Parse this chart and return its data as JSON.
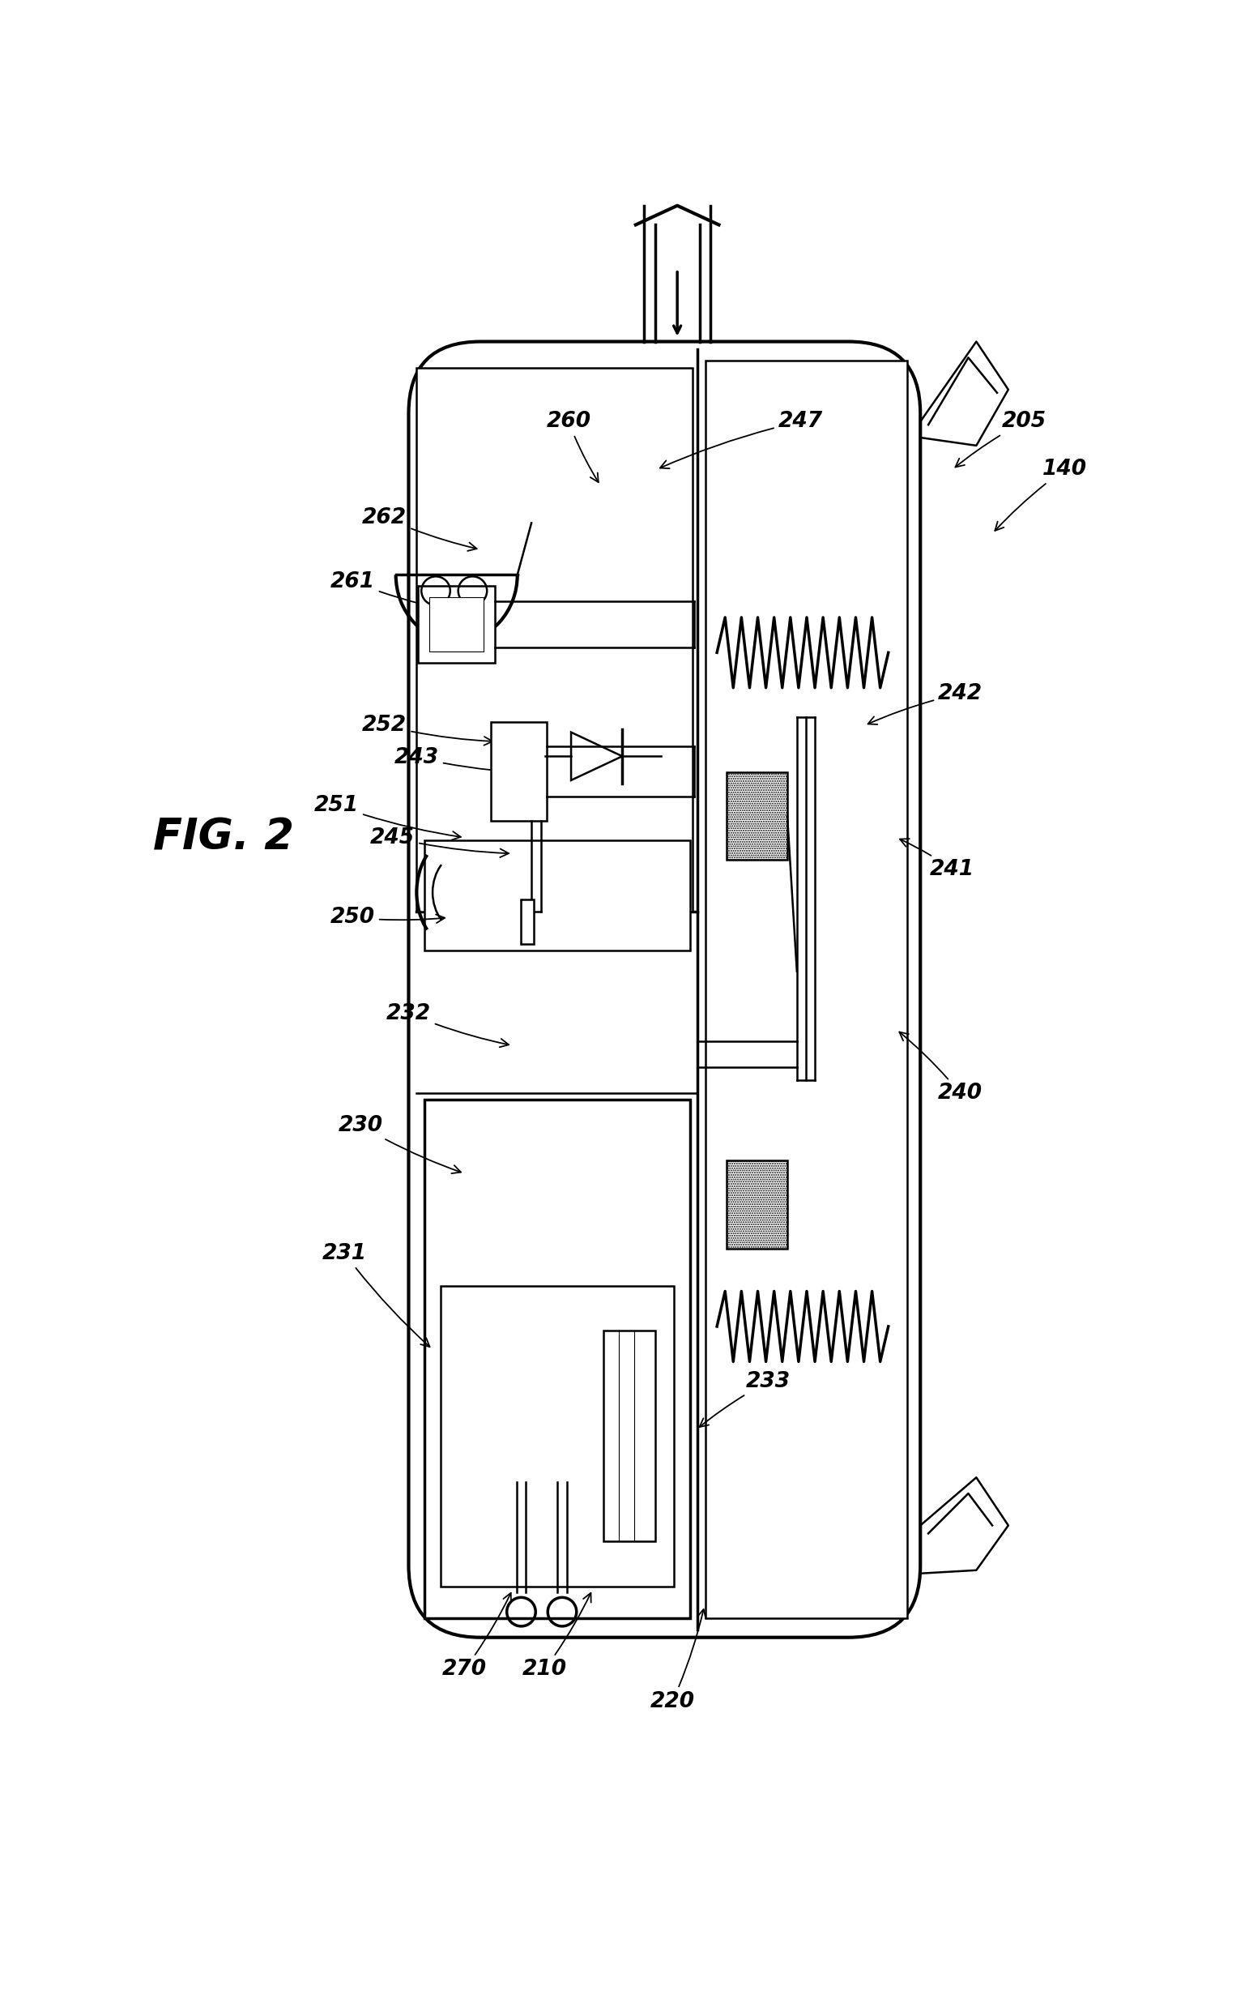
{
  "background_color": "#ffffff",
  "line_color": "#000000",
  "fig_width": 15.42,
  "fig_height": 24.62,
  "fig_label": "FIG. 2",
  "annotations": [
    [
      "140",
      5.85,
      9.5,
      5.4,
      9.1
    ],
    [
      "205",
      5.6,
      9.8,
      5.15,
      9.5
    ],
    [
      "210",
      2.6,
      2.0,
      2.9,
      2.5
    ],
    [
      "220",
      3.4,
      1.8,
      3.6,
      2.4
    ],
    [
      "230",
      1.45,
      5.4,
      2.1,
      5.1
    ],
    [
      "231",
      1.35,
      4.6,
      1.9,
      4.0
    ],
    [
      "232",
      1.75,
      6.1,
      2.4,
      5.9
    ],
    [
      "233",
      4.0,
      3.8,
      3.55,
      3.5
    ],
    [
      "240",
      5.2,
      5.6,
      4.8,
      6.0
    ],
    [
      "241",
      5.15,
      7.0,
      4.8,
      7.2
    ],
    [
      "242",
      5.2,
      8.1,
      4.6,
      7.9
    ],
    [
      "243",
      1.8,
      7.7,
      2.6,
      7.6
    ],
    [
      "245",
      1.65,
      7.2,
      2.4,
      7.1
    ],
    [
      "247",
      4.2,
      9.8,
      3.3,
      9.5
    ],
    [
      "250",
      1.4,
      6.7,
      2.0,
      6.7
    ],
    [
      "251",
      1.3,
      7.4,
      2.1,
      7.2
    ],
    [
      "252",
      1.6,
      7.9,
      2.3,
      7.8
    ],
    [
      "260",
      2.75,
      9.8,
      2.95,
      9.4
    ],
    [
      "261",
      1.4,
      8.8,
      2.1,
      8.6
    ],
    [
      "262",
      1.6,
      9.2,
      2.2,
      9.0
    ],
    [
      "270",
      2.1,
      2.0,
      2.4,
      2.5
    ]
  ]
}
